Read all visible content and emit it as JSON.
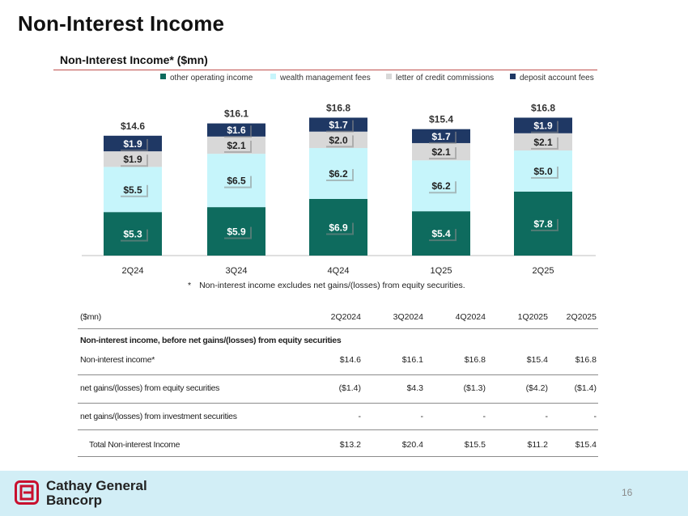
{
  "page": {
    "title": "Non-Interest Income",
    "page_number": "16"
  },
  "brand": {
    "line1": "Cathay General",
    "line2": "Bancorp",
    "logo_color": "#c8102e"
  },
  "colors": {
    "other_operating_income": "#0e6b5e",
    "wealth_management_fees": "#c6f5fb",
    "letter_of_credit_commissions": "#d8d8d8",
    "deposit_account_fees": "#1f3864",
    "rule": "#c0504d",
    "footer": "#d2eef6"
  },
  "chart_data": {
    "type": "bar",
    "stacked": true,
    "title": "Non-Interest Income* ($mn)",
    "categories": [
      "2Q24",
      "3Q24",
      "4Q24",
      "1Q25",
      "2Q25"
    ],
    "series": [
      {
        "name": "other operating income",
        "values": [
          5.3,
          5.9,
          6.9,
          5.4,
          7.8
        ],
        "labels": [
          "$5.3",
          "$5.9",
          "$6.9",
          "$5.4",
          "$7.8"
        ]
      },
      {
        "name": "wealth management fees",
        "values": [
          5.5,
          6.5,
          6.2,
          6.2,
          5.0
        ],
        "labels": [
          "$5.5",
          "$6.5",
          "$6.2",
          "$6.2",
          "$5.0"
        ]
      },
      {
        "name": "letter of credit commissions",
        "values": [
          1.9,
          2.1,
          2.0,
          2.1,
          2.1
        ],
        "labels": [
          "$1.9",
          "$2.1",
          "$2.0",
          "$2.1",
          "$2.1"
        ]
      },
      {
        "name": "deposit account fees",
        "values": [
          1.9,
          1.6,
          1.7,
          1.7,
          1.9
        ],
        "labels": [
          "$1.9",
          "$1.6",
          "$1.7",
          "$1.7",
          "$1.9"
        ]
      }
    ],
    "totals": [
      "$14.6",
      "$16.1",
      "$16.8",
      "$15.4",
      "$16.8"
    ],
    "legend_position": "top",
    "grid": false,
    "ylim": [
      0,
      18
    ],
    "footnote": "Non-interest income excludes net gains/(losses) from equity securities."
  },
  "table": {
    "unit_label": "($mn)",
    "columns": [
      "2Q2024",
      "3Q2024",
      "4Q2024",
      "1Q2025",
      "2Q2025"
    ],
    "section_label": "Non-interest income, before net gains/(losses) from equity securities",
    "rows": [
      {
        "label": "Non-interest income*",
        "values": [
          "$14.6",
          "$16.1",
          "$16.8",
          "$15.4",
          "$16.8"
        ]
      },
      {
        "label": "net gains/(losses) from equity securities",
        "values": [
          "($1.4)",
          "$4.3",
          "($1.3)",
          "($4.2)",
          "($1.4)"
        ]
      },
      {
        "label": "net gains/(losses) from investment securities",
        "values": [
          "-",
          "-",
          "-",
          "-",
          "-"
        ]
      },
      {
        "label": "Total Non-interest Income",
        "values": [
          "$13.2",
          "$20.4",
          "$15.5",
          "$11.2",
          "$15.4"
        ]
      }
    ]
  }
}
